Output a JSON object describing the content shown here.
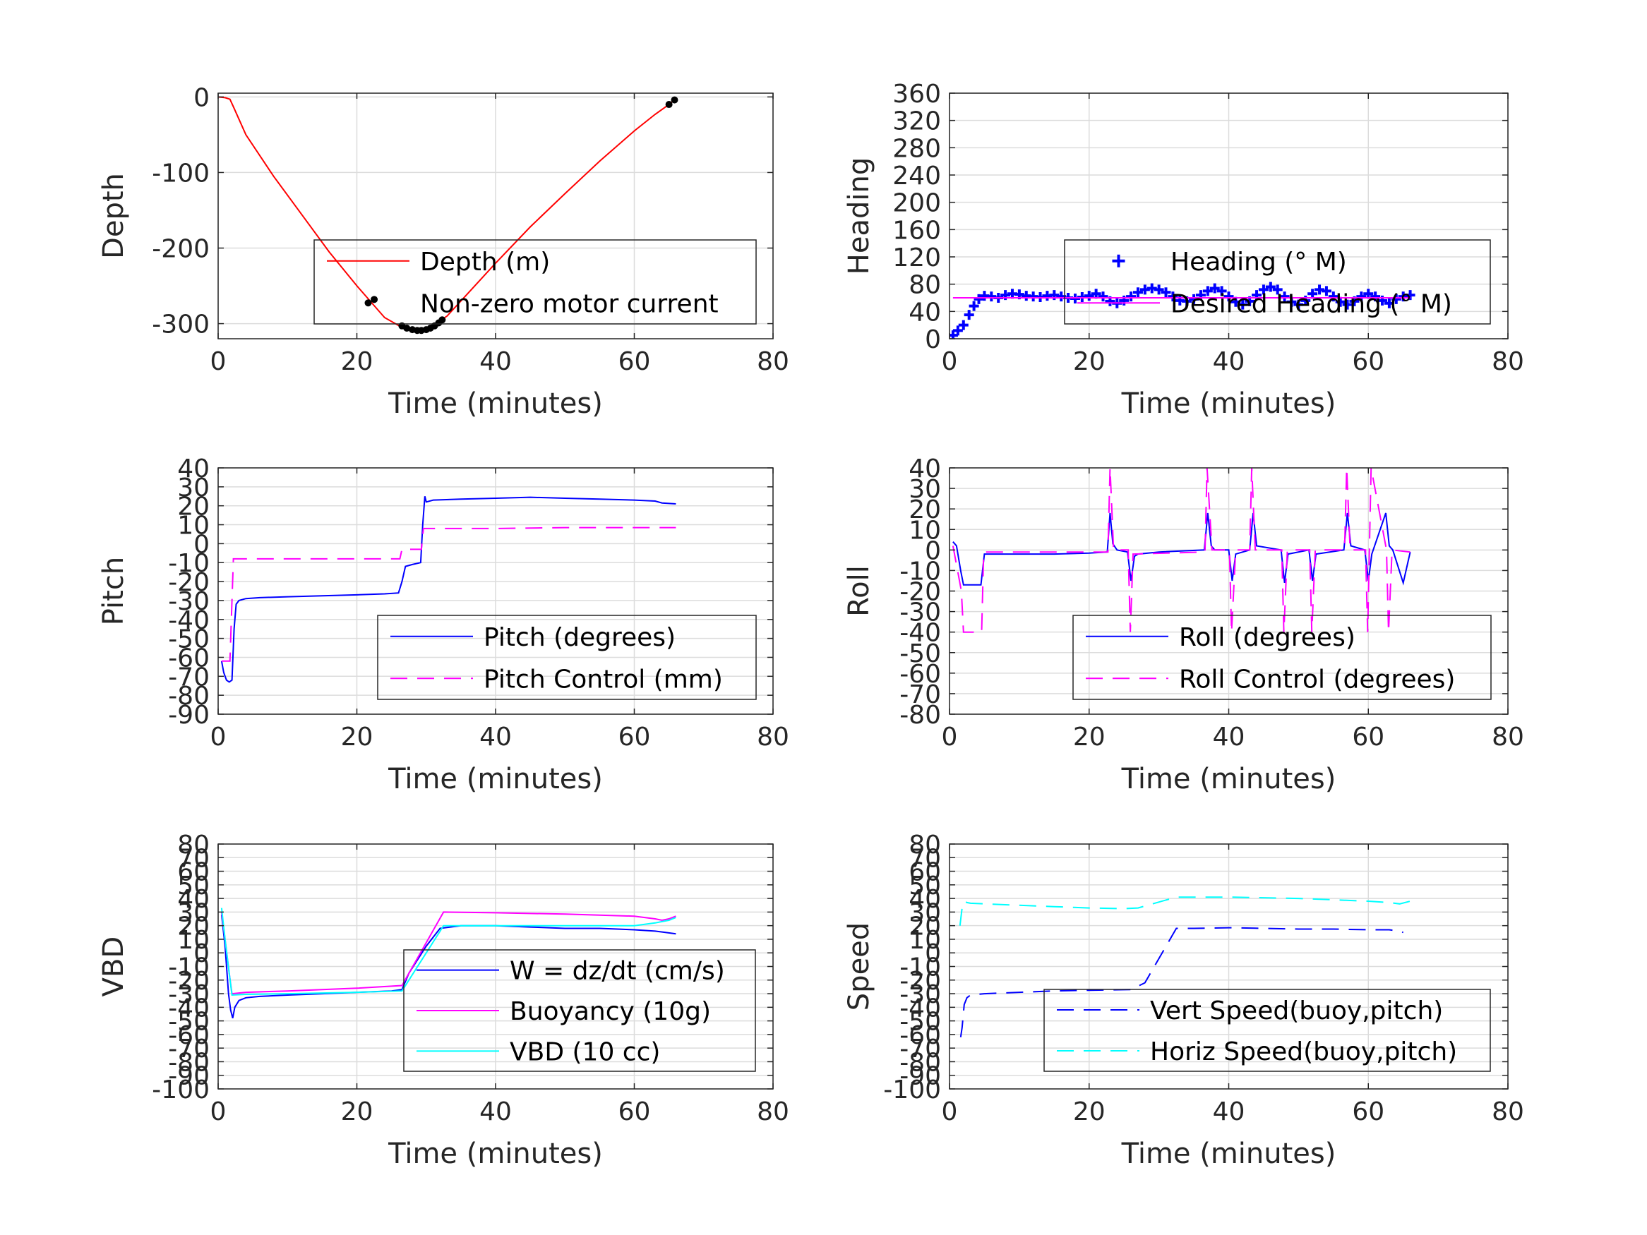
{
  "chart_data": [
    {
      "id": "depth",
      "type": "line",
      "xlabel": "Time (minutes)",
      "ylabel": "Depth",
      "xlim": [
        0,
        80
      ],
      "ylim": [
        -320,
        5
      ],
      "xticks": [
        0,
        20,
        40,
        60,
        80
      ],
      "yticks": [
        -300,
        -200,
        -100,
        0
      ],
      "grid": true,
      "legend_position": "lower-right",
      "series": [
        {
          "name": "Depth (m)",
          "color": "#ff0000",
          "style": "solid",
          "x": [
            0,
            1,
            1.7,
            2.3,
            4,
            8,
            12,
            16,
            20,
            24,
            26.5,
            28,
            29.5,
            31,
            33,
            36,
            40,
            45,
            50,
            55,
            60,
            63,
            65,
            66
          ],
          "y": [
            0,
            -1,
            -3,
            -15,
            -50,
            -105,
            -155,
            -205,
            -250,
            -292,
            -305,
            -308,
            -308,
            -302,
            -290,
            -260,
            -220,
            -172,
            -128,
            -85,
            -45,
            -23,
            -10,
            -2
          ]
        },
        {
          "name": "Non-zero motor current",
          "color": "#000000",
          "style": "marker",
          "x": [
            22.5,
            26.5,
            27.2,
            28,
            28.7,
            29.3,
            30,
            30.6,
            31.2,
            31.8,
            32.3,
            65,
            65.8
          ],
          "y": [
            -268,
            -303,
            -306,
            -308,
            -309,
            -309,
            -308,
            -306,
            -303,
            -299,
            -295,
            -10,
            -4
          ]
        }
      ]
    },
    {
      "id": "heading",
      "type": "scatter",
      "xlabel": "Time (minutes)",
      "ylabel": "Heading",
      "xlim": [
        0,
        80
      ],
      "ylim": [
        0,
        360
      ],
      "xticks": [
        0,
        20,
        40,
        60,
        80
      ],
      "yticks": [
        0,
        40,
        80,
        120,
        160,
        200,
        240,
        280,
        320,
        360
      ],
      "grid": true,
      "legend_position": "lower-right",
      "series": [
        {
          "name": "Heading (° M)",
          "color": "#0000ff",
          "style": "plus-marker",
          "x": [
            0.5,
            1.2,
            2,
            2.8,
            3.5,
            4.2,
            5,
            6,
            7,
            8,
            9,
            10,
            11,
            12,
            13,
            14,
            15,
            16,
            17,
            18,
            19,
            20,
            21,
            22,
            23,
            24,
            25,
            26,
            27,
            28,
            29,
            30,
            31,
            32,
            33,
            34,
            35,
            36,
            37,
            38,
            39,
            40,
            41,
            42,
            43,
            44,
            45,
            46,
            47,
            48,
            49,
            50,
            51,
            52,
            53,
            54,
            55,
            56,
            57,
            58,
            59,
            60,
            61,
            62,
            63,
            64,
            65,
            66
          ],
          "y": [
            5,
            12,
            20,
            35,
            48,
            58,
            63,
            62,
            60,
            64,
            66,
            65,
            63,
            62,
            61,
            63,
            64,
            62,
            60,
            59,
            61,
            63,
            66,
            62,
            55,
            52,
            56,
            62,
            68,
            72,
            74,
            72,
            68,
            62,
            56,
            55,
            58,
            64,
            70,
            74,
            70,
            62,
            54,
            50,
            55,
            64,
            72,
            76,
            72,
            62,
            54,
            50,
            56,
            66,
            72,
            70,
            62,
            54,
            50,
            55,
            62,
            66,
            62,
            56,
            52,
            58,
            62,
            64
          ]
        },
        {
          "name": "Desired Heading (° M)",
          "color": "#ff00ff",
          "style": "solid",
          "x": [
            0.5,
            66
          ],
          "y": [
            60,
            60
          ]
        }
      ]
    },
    {
      "id": "pitch",
      "type": "line",
      "xlabel": "Time (minutes)",
      "ylabel": "Pitch",
      "xlim": [
        0,
        80
      ],
      "ylim": [
        -90,
        40
      ],
      "xticks": [
        0,
        20,
        40,
        60,
        80
      ],
      "yticks": [
        -90,
        -80,
        -70,
        -60,
        -50,
        -40,
        -30,
        -20,
        -10,
        0,
        10,
        20,
        30,
        40
      ],
      "grid": true,
      "legend_position": "lower-right",
      "series": [
        {
          "name": "Pitch (degrees)",
          "color": "#0000ff",
          "style": "solid",
          "x": [
            0.5,
            0.8,
            1.2,
            1.6,
            2,
            2.3,
            2.6,
            3,
            4,
            6,
            10,
            15,
            20,
            24,
            26,
            26.5,
            27,
            28,
            29.2,
            29.5,
            29.8,
            30,
            31,
            35,
            40,
            45,
            50,
            55,
            60,
            63,
            64,
            66
          ],
          "y": [
            -62,
            -68,
            -72,
            -73,
            -72,
            -45,
            -32,
            -30,
            -29,
            -28.5,
            -28,
            -27.5,
            -27,
            -26.5,
            -26,
            -20,
            -12,
            -11,
            -10,
            10,
            25,
            22,
            23,
            23.5,
            24,
            24.5,
            24,
            23.5,
            23,
            22.5,
            21.5,
            21
          ]
        },
        {
          "name": "Pitch Control (mm)",
          "color": "#ff00ff",
          "style": "dashed",
          "x": [
            0.5,
            1.7,
            1.9,
            2.2,
            26.2,
            26.5,
            29.3,
            29.6,
            40,
            50,
            60,
            66
          ],
          "y": [
            -62,
            -62,
            -40,
            -8,
            -8,
            -3,
            -3,
            8,
            8,
            8.5,
            8.5,
            8.5
          ]
        }
      ]
    },
    {
      "id": "roll",
      "type": "line",
      "xlabel": "Time (minutes)",
      "ylabel": "Roll",
      "xlim": [
        0,
        80
      ],
      "ylim": [
        -80,
        40
      ],
      "xticks": [
        0,
        20,
        40,
        60,
        80
      ],
      "yticks": [
        -80,
        -70,
        -60,
        -50,
        -40,
        -30,
        -20,
        -10,
        0,
        10,
        20,
        30,
        40
      ],
      "grid": true,
      "legend_position": "lower-right",
      "series": [
        {
          "name": "Roll (degrees)",
          "color": "#0000ff",
          "style": "solid",
          "x": [
            0.5,
            1,
            1.6,
            2,
            4.5,
            5,
            6,
            10,
            15,
            20,
            22.6,
            23,
            23.4,
            24,
            25.5,
            26,
            26.5,
            27,
            30,
            36.5,
            37,
            37.5,
            38,
            40,
            40.5,
            41,
            43,
            43.5,
            44,
            47.5,
            48,
            48.5,
            51.5,
            52,
            52.5,
            56.5,
            57,
            57.5,
            59.5,
            60,
            60.5,
            62.5,
            63,
            63.5,
            65,
            66
          ],
          "y": [
            4,
            2,
            -10,
            -17,
            -17,
            -2,
            -2,
            -2,
            -2,
            -1.5,
            -1,
            18,
            3,
            0,
            -1,
            -15,
            -3,
            -2,
            -1,
            0,
            18,
            2,
            0,
            0,
            -15,
            -2,
            0,
            18,
            2,
            0,
            -16,
            -2,
            0,
            -15,
            -2,
            0,
            18,
            2,
            0,
            -15,
            -2,
            18,
            2,
            0,
            -16,
            -1
          ]
        },
        {
          "name": "Roll Control (degrees)",
          "color": "#ff00ff",
          "style": "dashed",
          "x": [
            0.5,
            1.7,
            2,
            4.6,
            4.9,
            10,
            20,
            22.7,
            23,
            23.5,
            25.6,
            25.9,
            26.3,
            36.6,
            36.9,
            37.6,
            40.1,
            40.4,
            41,
            43,
            43.3,
            43.8,
            47.6,
            47.9,
            48.4,
            51.6,
            51.9,
            52.4,
            56.6,
            56.9,
            57.4,
            59.6,
            59.9,
            60.4,
            62.6,
            62.9,
            63.4,
            66
          ],
          "y": [
            2,
            -20,
            -40,
            -40,
            -1,
            -1,
            -1,
            -1,
            40,
            0,
            0,
            -40,
            -2,
            -1,
            40,
            0,
            0,
            -40,
            0,
            0,
            40,
            0,
            0,
            -40,
            0,
            0,
            -40,
            0,
            0,
            40,
            0,
            0,
            -40,
            40,
            0,
            -40,
            0,
            -1
          ]
        }
      ]
    },
    {
      "id": "vbd",
      "type": "line",
      "xlabel": "Time (minutes)",
      "ylabel": "VBD",
      "xlim": [
        0,
        80
      ],
      "ylim": [
        -100,
        80
      ],
      "xticks": [
        0,
        20,
        40,
        60,
        80
      ],
      "yticks": [
        -100,
        -90,
        -80,
        -70,
        -60,
        -50,
        -40,
        -30,
        -20,
        -10,
        0,
        10,
        20,
        30,
        40,
        50,
        60,
        70,
        80
      ],
      "ytick_labels": [
        "-100",
        "-90",
        "-80",
        "-70",
        "-60",
        "-50",
        "-40",
        "-30",
        "-20",
        "-10",
        "0",
        "10",
        "20",
        "30",
        "40",
        "50",
        "60",
        "70",
        "80"
      ],
      "grid": true,
      "legend_position": "lower-right",
      "series": [
        {
          "name": "W = dz/dt (cm/s)",
          "color": "#0000ff",
          "style": "solid",
          "x": [
            0.5,
            1,
            1.5,
            1.8,
            2.1,
            2.4,
            3,
            4,
            6,
            10,
            15,
            20,
            25,
            26.5,
            27.5,
            30,
            32,
            35,
            40,
            45,
            50,
            55,
            60,
            63,
            64.5,
            66
          ],
          "y": [
            28,
            5,
            -30,
            -42,
            -48,
            -40,
            -35,
            -33,
            -32,
            -31,
            -30,
            -29,
            -28,
            -27,
            -15,
            5,
            18,
            20,
            20,
            19,
            18,
            18,
            17,
            16,
            15,
            14
          ]
        },
        {
          "name": "Buoyancy (10g)",
          "color": "#ff00ff",
          "style": "solid",
          "x": [
            0.5,
            1,
            1.6,
            2,
            4,
            10,
            20,
            26.5,
            32.5,
            40,
            50,
            60,
            63,
            64,
            65,
            66
          ],
          "y": [
            30,
            10,
            -15,
            -30,
            -29,
            -28,
            -26,
            -24,
            30,
            29.5,
            28.5,
            27,
            25,
            24,
            25,
            27
          ]
        },
        {
          "name": "VBD (10 cc)",
          "color": "#00ffff",
          "style": "solid",
          "x": [
            0.5,
            1,
            1.6,
            2,
            4,
            10,
            20,
            26.5,
            32.5,
            40,
            50,
            60,
            63,
            64,
            65,
            66
          ],
          "y": [
            33,
            10,
            -15,
            -31,
            -30.5,
            -30,
            -29,
            -28,
            20,
            20,
            20,
            20,
            22,
            23,
            24,
            26
          ]
        }
      ]
    },
    {
      "id": "speed",
      "type": "line",
      "xlabel": "Time (minutes)",
      "ylabel": "Speed",
      "xlim": [
        0,
        80
      ],
      "ylim": [
        -100,
        80
      ],
      "xticks": [
        0,
        20,
        40,
        60,
        80
      ],
      "yticks": [
        -100,
        -90,
        -80,
        -70,
        -60,
        -50,
        -40,
        -30,
        -20,
        -10,
        0,
        10,
        20,
        30,
        40,
        50,
        60,
        70,
        80
      ],
      "ytick_labels": [
        "-100",
        "-90",
        "-80",
        "-70",
        "-60",
        "-50",
        "-40",
        "-30",
        "-20",
        "-10",
        "0",
        "10",
        "20",
        "30",
        "40",
        "50",
        "60",
        "70",
        "80"
      ],
      "grid": true,
      "legend_position": "lower-right",
      "series": [
        {
          "name": "Vert Speed(buoy,pitch)",
          "color": "#0000ff",
          "style": "dashed",
          "x": [
            1.6,
            1.8,
            2.1,
            2.5,
            3,
            5,
            10,
            15,
            20,
            26,
            28,
            32.5,
            35,
            40,
            45,
            50,
            55,
            60,
            63,
            64.5,
            65
          ],
          "y": [
            -62,
            -55,
            -38,
            -33,
            -31,
            -30,
            -29,
            -28,
            -27.5,
            -27,
            -22,
            18,
            18,
            18.5,
            18,
            17.5,
            17.5,
            17,
            17,
            16,
            15
          ]
        },
        {
          "name": "Horiz Speed(buoy,pitch)",
          "color": "#00ffff",
          "style": "dashed",
          "x": [
            1.5,
            1.8,
            2.1,
            2.5,
            3,
            5,
            10,
            15,
            20,
            25,
            27,
            32.5,
            35,
            40,
            45,
            50,
            55,
            60,
            63,
            64.5,
            66
          ],
          "y": [
            20,
            33,
            38,
            37,
            36.5,
            36,
            35,
            34,
            33,
            32.5,
            33,
            41,
            41,
            41,
            40.5,
            40,
            39,
            38,
            37,
            36,
            38
          ]
        }
      ]
    }
  ]
}
